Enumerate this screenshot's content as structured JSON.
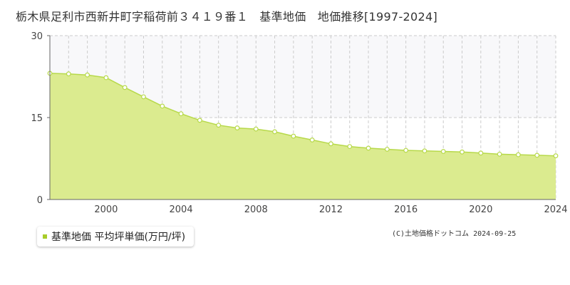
{
  "title": "栃木県足利市西新井町字稲荷前３４１９番１　基準地価　地価推移[1997-2024]",
  "legend": {
    "label": "基準地価 平均坪単価(万円/坪)"
  },
  "credit": "(C)土地価格ドットコム 2024-09-25",
  "colors": {
    "area": "#dbeb8f",
    "line": "#b7d94a",
    "marker_fill": "#ffffff",
    "legend_swatch": "#a8cc2a",
    "upper_band": "#f8f8fa"
  },
  "chart_data": {
    "type": "area",
    "x": [
      1997,
      1998,
      1999,
      2000,
      2001,
      2002,
      2003,
      2004,
      2005,
      2006,
      2007,
      2008,
      2009,
      2010,
      2011,
      2012,
      2013,
      2014,
      2015,
      2016,
      2017,
      2018,
      2019,
      2020,
      2021,
      2022,
      2023,
      2024
    ],
    "series": [
      {
        "name": "基準地価 平均坪単価(万円/坪)",
        "values": [
          23.1,
          23.0,
          22.8,
          22.3,
          20.5,
          18.8,
          17.1,
          15.7,
          14.5,
          13.6,
          13.1,
          12.9,
          12.4,
          11.6,
          10.9,
          10.2,
          9.7,
          9.4,
          9.2,
          9.0,
          8.9,
          8.8,
          8.7,
          8.5,
          8.3,
          8.2,
          8.1,
          8.0
        ]
      }
    ],
    "xlim": [
      1997,
      2024
    ],
    "ylim": [
      0,
      30
    ],
    "yticks": [
      0,
      15,
      30
    ],
    "ytick_labels": [
      "0",
      "15",
      "30"
    ],
    "xticks": [
      2000,
      2004,
      2008,
      2012,
      2016,
      2020,
      2024
    ],
    "xtick_labels": [
      "2000",
      "2004",
      "2008",
      "2012",
      "2016",
      "2020",
      "2024"
    ],
    "grid": true,
    "legend_position": "bottom-left"
  }
}
